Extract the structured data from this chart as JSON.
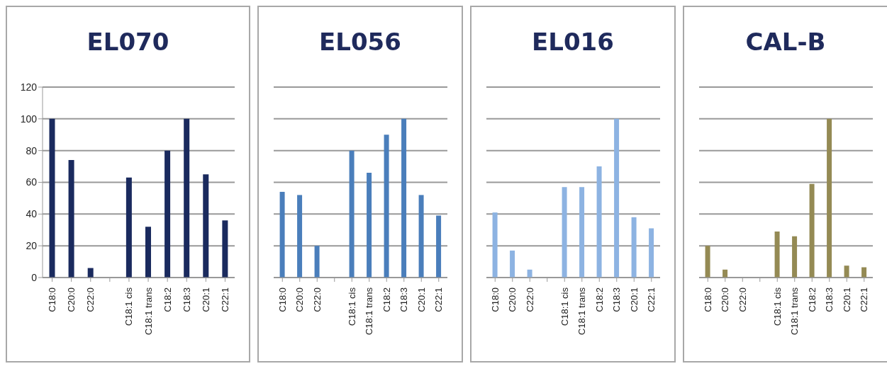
{
  "chart_data": [
    {
      "type": "bar",
      "title": "EL070",
      "categories": [
        "C18:0",
        "C20:0",
        "C22:0",
        null,
        "C18:1 cis",
        "C18:1 trans",
        "C18:2",
        "C18:3",
        "C20:1",
        "C22:1"
      ],
      "values": [
        100,
        74,
        6,
        null,
        63,
        32,
        80,
        100,
        65,
        36
      ],
      "color": "#1a2a5e",
      "ylim": [
        0,
        120
      ],
      "yticks": [
        0,
        20,
        40,
        60,
        80,
        100,
        120
      ],
      "grid": "y"
    },
    {
      "type": "bar",
      "title": "EL056",
      "categories": [
        "C18:0",
        "C20:0",
        "C22:0",
        null,
        "C18:1 cis",
        "C18:1 trans",
        "C18:2",
        "C18:3",
        "C20:1",
        "C22:1"
      ],
      "values": [
        54,
        52,
        20,
        null,
        80,
        66,
        90,
        100,
        52,
        39
      ],
      "color": "#4a7ebb",
      "ylim": [
        0,
        120
      ],
      "yticks": [
        0,
        20,
        40,
        60,
        80,
        100,
        120
      ],
      "grid": "y",
      "tick_labels": "x"
    },
    {
      "type": "bar",
      "title": "EL016",
      "categories": [
        "C18:0",
        "C20:0",
        "C22:0",
        null,
        "C18:1 cis",
        "C18:1 trans",
        "C18:2",
        "C18:3",
        "C20:1",
        "C22:1"
      ],
      "values": [
        41,
        17,
        5,
        null,
        57,
        57,
        70,
        100,
        38,
        31
      ],
      "color": "#8db3e2",
      "ylim": [
        0,
        120
      ],
      "yticks": [
        0,
        20,
        40,
        60,
        80,
        100,
        120
      ],
      "grid": "y",
      "tick_labels": "x"
    },
    {
      "type": "bar",
      "title": "CAL-B",
      "categories": [
        "C18:0",
        "C20:0",
        "C22:0",
        null,
        "C18:1 cis",
        "C18:1 trans",
        "C18:2",
        "C18:3",
        "C20:1",
        "C22:1"
      ],
      "values": [
        20,
        5,
        0,
        null,
        29,
        26,
        59,
        100,
        7.5,
        6.5
      ],
      "color": "#948a54",
      "ylim": [
        0,
        120
      ],
      "yticks": [
        0,
        20,
        40,
        60,
        80,
        100,
        120
      ],
      "grid": "y",
      "tick_labels": "x"
    }
  ]
}
